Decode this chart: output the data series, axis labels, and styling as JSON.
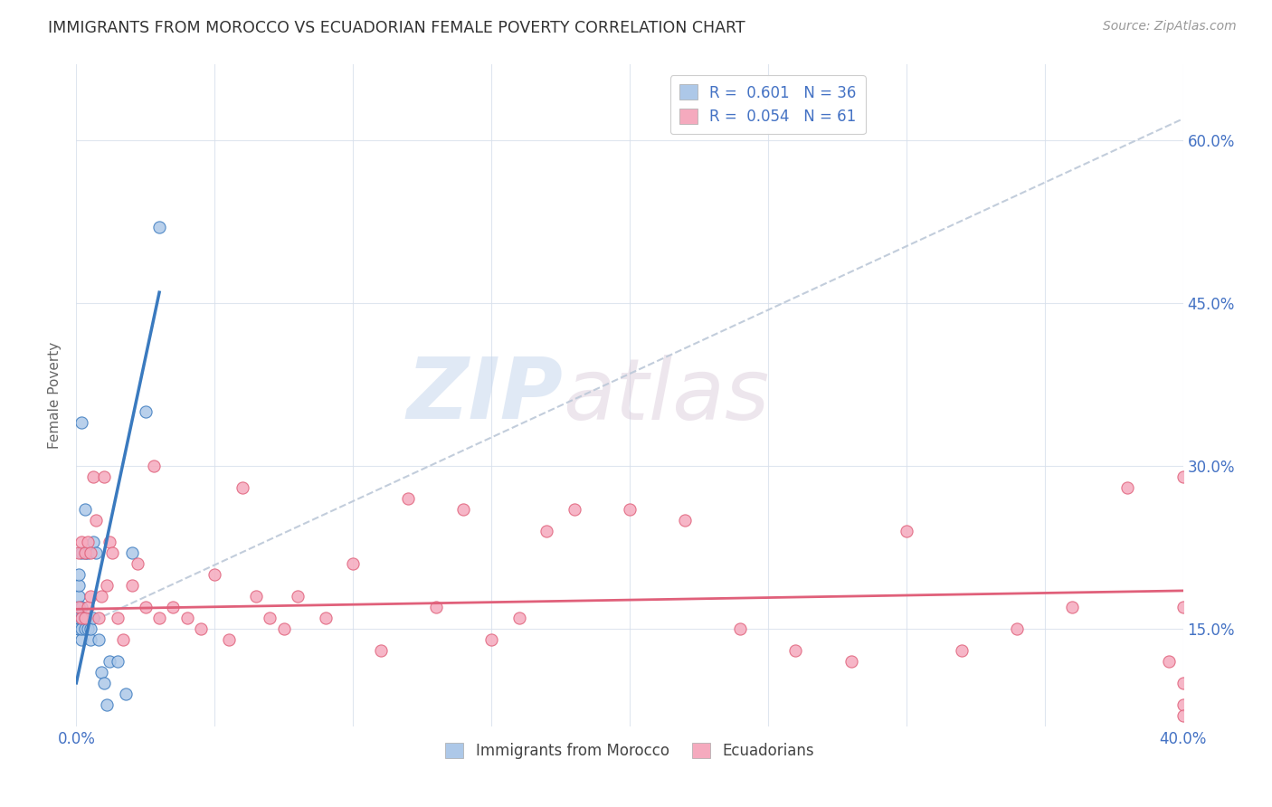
{
  "title": "IMMIGRANTS FROM MOROCCO VS ECUADORIAN FEMALE POVERTY CORRELATION CHART",
  "source": "Source: ZipAtlas.com",
  "ylabel": "Female Poverty",
  "yticks": [
    "15.0%",
    "30.0%",
    "45.0%",
    "60.0%"
  ],
  "ytick_vals": [
    0.15,
    0.3,
    0.45,
    0.6
  ],
  "xlim": [
    0.0,
    0.4
  ],
  "ylim": [
    0.06,
    0.67
  ],
  "legend_r1": "R =  0.601   N = 36",
  "legend_r2": "R =  0.054   N = 61",
  "color_morocco": "#adc8e8",
  "color_ecuador": "#f5aabe",
  "line_morocco": "#3a7abf",
  "line_ecuador": "#e0607a",
  "line_diagonal": "#bcc8d8",
  "watermark_zip": "ZIP",
  "watermark_atlas": "atlas",
  "morocco_x": [
    0.001,
    0.001,
    0.001,
    0.001,
    0.001,
    0.001,
    0.001,
    0.001,
    0.002,
    0.002,
    0.002,
    0.002,
    0.002,
    0.002,
    0.003,
    0.003,
    0.003,
    0.003,
    0.004,
    0.004,
    0.004,
    0.005,
    0.005,
    0.006,
    0.006,
    0.007,
    0.008,
    0.009,
    0.01,
    0.011,
    0.012,
    0.015,
    0.018,
    0.02,
    0.025,
    0.03
  ],
  "morocco_y": [
    0.15,
    0.15,
    0.16,
    0.16,
    0.17,
    0.18,
    0.19,
    0.2,
    0.14,
    0.15,
    0.16,
    0.17,
    0.22,
    0.34,
    0.15,
    0.16,
    0.22,
    0.26,
    0.15,
    0.16,
    0.22,
    0.14,
    0.15,
    0.16,
    0.23,
    0.22,
    0.14,
    0.11,
    0.1,
    0.08,
    0.12,
    0.12,
    0.09,
    0.22,
    0.35,
    0.52
  ],
  "ecuador_x": [
    0.001,
    0.001,
    0.002,
    0.002,
    0.003,
    0.003,
    0.004,
    0.004,
    0.005,
    0.005,
    0.006,
    0.007,
    0.008,
    0.009,
    0.01,
    0.011,
    0.012,
    0.013,
    0.015,
    0.017,
    0.02,
    0.022,
    0.025,
    0.028,
    0.03,
    0.035,
    0.04,
    0.045,
    0.05,
    0.055,
    0.06,
    0.065,
    0.07,
    0.075,
    0.08,
    0.09,
    0.1,
    0.11,
    0.12,
    0.13,
    0.14,
    0.15,
    0.16,
    0.17,
    0.18,
    0.2,
    0.22,
    0.24,
    0.26,
    0.28,
    0.3,
    0.32,
    0.34,
    0.36,
    0.38,
    0.395,
    0.4,
    0.4,
    0.4,
    0.4,
    0.4
  ],
  "ecuador_y": [
    0.17,
    0.22,
    0.16,
    0.23,
    0.16,
    0.22,
    0.17,
    0.23,
    0.18,
    0.22,
    0.29,
    0.25,
    0.16,
    0.18,
    0.29,
    0.19,
    0.23,
    0.22,
    0.16,
    0.14,
    0.19,
    0.21,
    0.17,
    0.3,
    0.16,
    0.17,
    0.16,
    0.15,
    0.2,
    0.14,
    0.28,
    0.18,
    0.16,
    0.15,
    0.18,
    0.16,
    0.21,
    0.13,
    0.27,
    0.17,
    0.26,
    0.14,
    0.16,
    0.24,
    0.26,
    0.26,
    0.25,
    0.15,
    0.13,
    0.12,
    0.24,
    0.13,
    0.15,
    0.17,
    0.28,
    0.12,
    0.1,
    0.08,
    0.07,
    0.17,
    0.29
  ],
  "morocco_line_x": [
    0.0,
    0.03
  ],
  "morocco_line_y": [
    0.1,
    0.46
  ],
  "ecuador_line_x": [
    0.0,
    0.4
  ],
  "ecuador_line_y": [
    0.168,
    0.185
  ],
  "diag_line_x": [
    0.0,
    0.4
  ],
  "diag_line_y": [
    0.15,
    0.62
  ]
}
